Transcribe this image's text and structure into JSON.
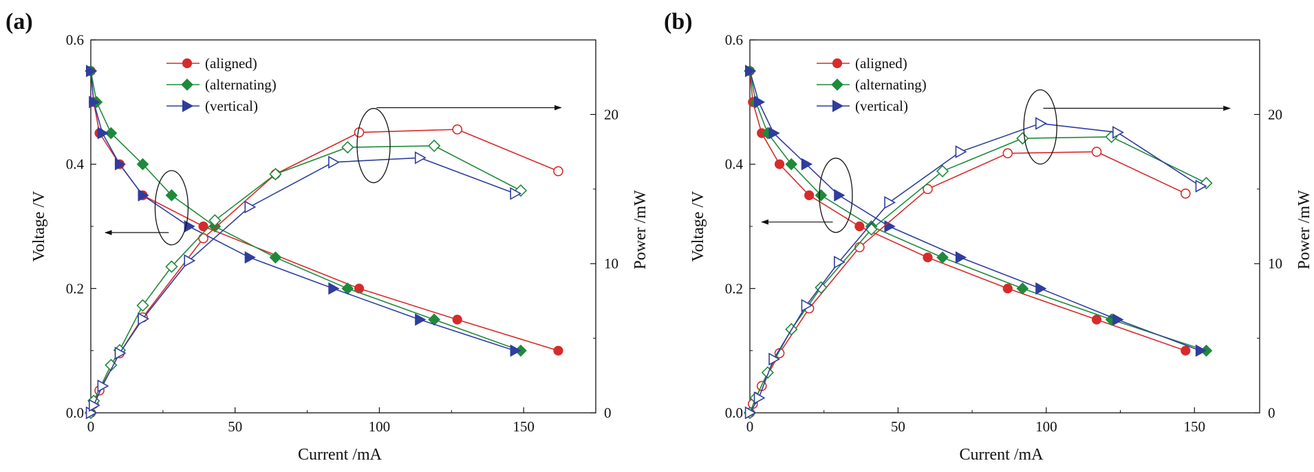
{
  "chart_data": [
    {
      "panel_label": "(a)",
      "type": "line",
      "xlabel": "Current /mA",
      "ylabel_left": "Voltage /V",
      "ylabel_right": "Power /mW",
      "xlim": [
        0,
        175
      ],
      "ylim_left": [
        0,
        0.6
      ],
      "ylim_right": [
        0,
        25
      ],
      "x_ticks": [
        "0",
        "50",
        "100",
        "150"
      ],
      "y_left_ticks": [
        "0.0",
        "0.2",
        "0.4",
        "0.6"
      ],
      "y_right_ticks": [
        "0",
        "10",
        "20"
      ],
      "legend": [
        "(aligned)",
        "(alternating)",
        "(vertical)"
      ],
      "series": [
        {
          "name": "(aligned)",
          "color": "#d62b2b",
          "marker": "circle",
          "axis": "left",
          "x": [
            0,
            1,
            3,
            10,
            18,
            39,
            93,
            127,
            162
          ],
          "y": [
            0.55,
            0.5,
            0.45,
            0.4,
            0.35,
            0.3,
            0.2,
            0.15,
            0.1
          ]
        },
        {
          "name": "(alternating)",
          "color": "#1f8a3a",
          "marker": "diamond",
          "axis": "left",
          "x": [
            0,
            2,
            7,
            18,
            28,
            43,
            64,
            89,
            119,
            149
          ],
          "y": [
            0.55,
            0.5,
            0.45,
            0.4,
            0.35,
            0.3,
            0.25,
            0.2,
            0.15,
            0.1
          ]
        },
        {
          "name": "(vertical)",
          "color": "#2f3d9e",
          "marker": "triangle",
          "axis": "left",
          "x": [
            0,
            1,
            4,
            10,
            18,
            34,
            55,
            84,
            114,
            147
          ],
          "y": [
            0.55,
            0.5,
            0.45,
            0.4,
            0.35,
            0.3,
            0.25,
            0.2,
            0.15,
            0.1
          ]
        },
        {
          "name": "(aligned) power",
          "color": "#d62b2b",
          "marker": "circle-open",
          "axis": "right",
          "x": [
            0,
            1,
            3,
            10,
            18,
            39,
            64,
            93,
            127,
            162
          ],
          "y": [
            0,
            0.6,
            1.5,
            4.0,
            6.4,
            11.7,
            16.0,
            18.8,
            19.0,
            16.2
          ]
        },
        {
          "name": "(alternating) power",
          "color": "#1f8a3a",
          "marker": "diamond-open",
          "axis": "right",
          "x": [
            0,
            1,
            7,
            10,
            18,
            28,
            43,
            64,
            89,
            119,
            149
          ],
          "y": [
            0,
            0.8,
            3.2,
            4.2,
            7.2,
            9.8,
            12.9,
            16.0,
            17.8,
            17.9,
            14.9
          ]
        },
        {
          "name": "(vertical) power",
          "color": "#2f3d9e",
          "marker": "triangle-open",
          "axis": "right",
          "x": [
            0,
            1,
            4,
            10,
            18,
            34,
            55,
            84,
            114,
            147
          ],
          "y": [
            0,
            0.5,
            1.8,
            4.0,
            6.3,
            10.2,
            13.8,
            16.8,
            17.1,
            14.7
          ]
        }
      ],
      "annotations": [
        {
          "type": "ellipse-arrow",
          "direction": "left",
          "ellipse_center": [
            28,
            0.33
          ],
          "arrow_from": [
            27,
            0.29
          ],
          "arrow_to": [
            5,
            0.29
          ]
        },
        {
          "type": "ellipse-arrow",
          "direction": "right",
          "ellipse_center": [
            98,
            0.43
          ],
          "arrow_from": [
            99,
            0.491
          ],
          "arrow_to": [
            163,
            0.491
          ]
        }
      ]
    },
    {
      "panel_label": "(b)",
      "type": "line",
      "xlabel": "Current /mA",
      "ylabel_left": "Voltage /V",
      "ylabel_right": "Power /mW",
      "xlim": [
        0,
        172
      ],
      "ylim_left": [
        0,
        0.6
      ],
      "ylim_right": [
        0,
        25
      ],
      "x_ticks": [
        "0",
        "50",
        "100",
        "150"
      ],
      "y_left_ticks": [
        "0.0",
        "0.2",
        "0.4",
        "0.6"
      ],
      "y_right_ticks": [
        "0",
        "10",
        "20"
      ],
      "legend": [
        "(aligned)",
        "(alternating)",
        "(vertical)"
      ],
      "series": [
        {
          "name": "(aligned)",
          "color": "#d62b2b",
          "marker": "circle",
          "axis": "left",
          "x": [
            0,
            1,
            4,
            10,
            20,
            37,
            60,
            87,
            117,
            147
          ],
          "y": [
            0.55,
            0.5,
            0.45,
            0.4,
            0.35,
            0.3,
            0.25,
            0.2,
            0.15,
            0.1
          ]
        },
        {
          "name": "(alternating)",
          "color": "#1f8a3a",
          "marker": "diamond",
          "axis": "left",
          "x": [
            0,
            2,
            6,
            14,
            24,
            41,
            65,
            92,
            122,
            154
          ],
          "y": [
            0.55,
            0.5,
            0.45,
            0.4,
            0.35,
            0.3,
            0.25,
            0.2,
            0.15,
            0.1
          ]
        },
        {
          "name": "(vertical)",
          "color": "#2f3d9e",
          "marker": "triangle",
          "axis": "left",
          "x": [
            0,
            3,
            8,
            19,
            30,
            47,
            71,
            98,
            124,
            152
          ],
          "y": [
            0.55,
            0.5,
            0.45,
            0.4,
            0.35,
            0.3,
            0.25,
            0.2,
            0.15,
            0.1
          ]
        },
        {
          "name": "(aligned) power",
          "color": "#d62b2b",
          "marker": "circle-open",
          "axis": "right",
          "x": [
            0,
            1,
            4,
            10,
            20,
            37,
            60,
            87,
            117,
            147
          ],
          "y": [
            0,
            0.6,
            1.8,
            4.0,
            7.0,
            11.1,
            15.0,
            17.4,
            17.5,
            14.7
          ]
        },
        {
          "name": "(alternating) power",
          "color": "#1f8a3a",
          "marker": "diamond-open",
          "axis": "right",
          "x": [
            0,
            2,
            6,
            14,
            24,
            41,
            65,
            92,
            122,
            154
          ],
          "y": [
            0,
            1.0,
            2.7,
            5.6,
            8.4,
            12.3,
            16.2,
            18.4,
            18.5,
            15.4
          ]
        },
        {
          "name": "(vertical) power",
          "color": "#2f3d9e",
          "marker": "triangle-open",
          "axis": "right",
          "x": [
            0,
            3,
            8,
            19,
            30,
            47,
            71,
            98,
            124,
            152
          ],
          "y": [
            0,
            1.0,
            3.6,
            7.2,
            10.1,
            14.1,
            17.5,
            19.4,
            18.8,
            15.2
          ]
        }
      ],
      "annotations": [
        {
          "type": "ellipse-arrow",
          "direction": "left",
          "ellipse_center": [
            29,
            0.35
          ],
          "arrow_from": [
            28,
            0.307
          ],
          "arrow_to": [
            4,
            0.307
          ]
        },
        {
          "type": "ellipse-arrow",
          "direction": "right",
          "ellipse_center": [
            98,
            0.46
          ],
          "arrow_from": [
            99,
            0.49
          ],
          "arrow_to": [
            162,
            0.49
          ]
        }
      ]
    }
  ]
}
